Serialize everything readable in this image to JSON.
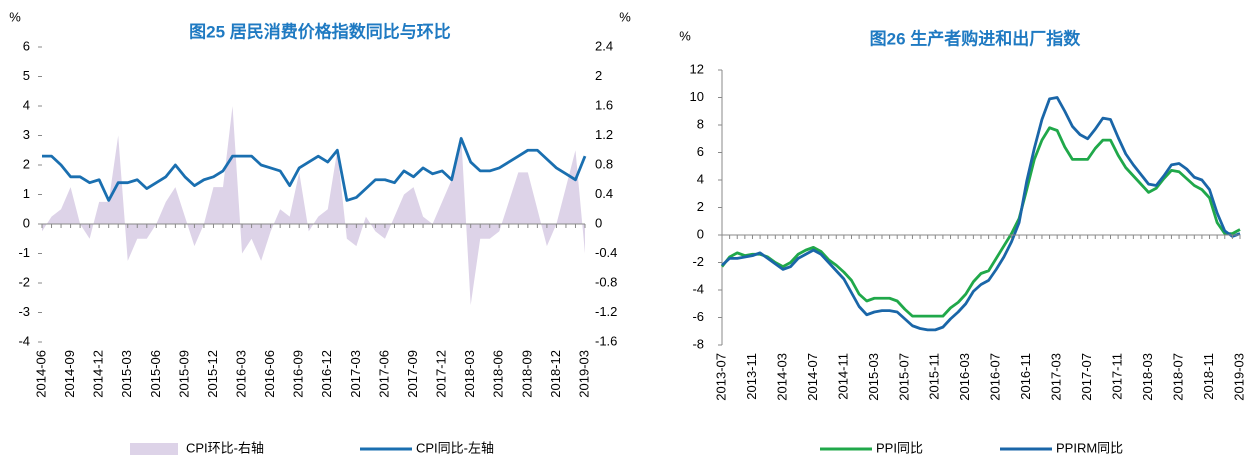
{
  "chart_data": [
    {
      "type": "line",
      "title": "图25 居民消费价格指数同比与环比",
      "y_unit": "%",
      "y2_unit": "%",
      "categories": [
        "2014-06",
        null,
        null,
        "2014-09",
        null,
        null,
        "2014-12",
        null,
        null,
        "2015-03",
        null,
        null,
        "2015-06",
        null,
        null,
        "2015-09",
        null,
        null,
        "2015-12",
        null,
        null,
        "2016-03",
        null,
        null,
        "2016-06",
        null,
        null,
        "2016-09",
        null,
        null,
        "2016-12",
        null,
        null,
        "2017-03",
        null,
        null,
        "2017-06",
        null,
        null,
        "2017-09",
        null,
        null,
        "2017-12",
        null,
        null,
        "2018-03",
        null,
        null,
        "2018-06",
        null,
        null,
        "2018-09",
        null,
        null,
        "2018-12",
        null,
        null,
        "2019-03"
      ],
      "series": [
        {
          "name": "CPI环比-右轴",
          "type": "area",
          "axis": "y2",
          "color": "#ddd3e8",
          "values": [
            -0.1,
            0.1,
            0.2,
            0.5,
            0.0,
            -0.2,
            0.3,
            0.3,
            1.2,
            -0.5,
            -0.2,
            -0.2,
            0.0,
            0.3,
            0.5,
            0.1,
            -0.3,
            0.0,
            0.5,
            0.5,
            1.6,
            -0.4,
            -0.2,
            -0.5,
            -0.1,
            0.2,
            0.1,
            0.7,
            -0.1,
            0.1,
            0.2,
            1.0,
            -0.2,
            -0.3,
            0.1,
            -0.1,
            -0.2,
            0.1,
            0.4,
            0.5,
            0.1,
            0.0,
            0.3,
            0.6,
            1.2,
            -1.1,
            -0.2,
            -0.2,
            -0.1,
            0.3,
            0.7,
            0.7,
            0.2,
            -0.3,
            0.0,
            0.5,
            1.0,
            -0.4
          ]
        },
        {
          "name": "CPI同比-左轴",
          "type": "line",
          "color": "#1a6fb0",
          "values": [
            2.3,
            2.3,
            2.0,
            1.6,
            1.6,
            1.4,
            1.5,
            0.8,
            1.4,
            1.4,
            1.5,
            1.2,
            1.4,
            1.6,
            2.0,
            1.6,
            1.3,
            1.5,
            1.6,
            1.8,
            2.3,
            2.3,
            2.3,
            2.0,
            1.9,
            1.8,
            1.3,
            1.9,
            2.1,
            2.3,
            2.1,
            2.5,
            0.8,
            0.9,
            1.2,
            1.5,
            1.5,
            1.4,
            1.8,
            1.6,
            1.9,
            1.7,
            1.8,
            1.5,
            2.9,
            2.1,
            1.8,
            1.8,
            1.9,
            2.1,
            2.3,
            2.5,
            2.5,
            2.2,
            1.9,
            1.7,
            1.5,
            2.3
          ]
        }
      ],
      "ylim": [
        -4,
        6
      ],
      "yticks": [
        -4,
        -3,
        -2,
        -1,
        0,
        1,
        2,
        3,
        4,
        5,
        6
      ],
      "y2lim": [
        -1.6,
        2.4
      ],
      "y2ticks": [
        -1.6,
        -1.2,
        -0.8,
        -0.4,
        0,
        0.4,
        0.8,
        1.2,
        1.6,
        2.0,
        2.4
      ],
      "legend": "bottom"
    },
    {
      "type": "line",
      "title": "图26 生产者购进和出厂指数",
      "y_unit": "%",
      "categories": [
        "2013-07",
        null,
        null,
        null,
        "2013-11",
        null,
        null,
        null,
        "2014-03",
        null,
        null,
        null,
        "2014-07",
        null,
        null,
        null,
        "2014-11",
        null,
        null,
        null,
        "2015-03",
        null,
        null,
        null,
        "2015-07",
        null,
        null,
        null,
        "2015-11",
        null,
        null,
        null,
        "2016-03",
        null,
        null,
        null,
        "2016-07",
        null,
        null,
        null,
        "2016-11",
        null,
        null,
        null,
        "2017-03",
        null,
        null,
        null,
        "2017-07",
        null,
        null,
        null,
        "2017-11",
        null,
        null,
        null,
        "2018-03",
        null,
        null,
        null,
        "2018-07",
        null,
        null,
        null,
        "2018-11",
        null,
        null,
        null,
        "2019-03"
      ],
      "series": [
        {
          "name": "PPI同比",
          "type": "line",
          "color": "#20a84a",
          "values": [
            -2.3,
            -1.6,
            -1.3,
            -1.5,
            -1.4,
            -1.4,
            -1.6,
            -2.0,
            -2.3,
            -2.0,
            -1.4,
            -1.1,
            -0.9,
            -1.2,
            -1.8,
            -2.2,
            -2.7,
            -3.3,
            -4.3,
            -4.8,
            -4.6,
            -4.6,
            -4.6,
            -4.8,
            -5.4,
            -5.9,
            -5.9,
            -5.9,
            -5.9,
            -5.9,
            -5.3,
            -4.9,
            -4.3,
            -3.4,
            -2.8,
            -2.6,
            -1.7,
            -0.8,
            0.1,
            1.2,
            3.3,
            5.5,
            6.9,
            7.8,
            7.6,
            6.4,
            5.5,
            5.5,
            5.5,
            6.3,
            6.9,
            6.9,
            5.8,
            4.9,
            4.3,
            3.7,
            3.1,
            3.4,
            4.1,
            4.7,
            4.6,
            4.1,
            3.6,
            3.3,
            2.7,
            0.9,
            0.1,
            0.1,
            0.4
          ]
        },
        {
          "name": "PPIRM同比",
          "type": "line",
          "color": "#1a66a8",
          "values": [
            -2.2,
            -1.7,
            -1.7,
            -1.6,
            -1.5,
            -1.3,
            -1.7,
            -2.1,
            -2.5,
            -2.3,
            -1.7,
            -1.4,
            -1.1,
            -1.4,
            -2.0,
            -2.6,
            -3.2,
            -4.2,
            -5.2,
            -5.8,
            -5.6,
            -5.5,
            -5.5,
            -5.6,
            -6.1,
            -6.6,
            -6.8,
            -6.9,
            -6.9,
            -6.7,
            -6.1,
            -5.6,
            -5.0,
            -4.1,
            -3.6,
            -3.3,
            -2.5,
            -1.6,
            -0.5,
            0.9,
            3.9,
            6.3,
            8.4,
            9.9,
            10.0,
            9.0,
            7.9,
            7.3,
            7.0,
            7.7,
            8.5,
            8.4,
            7.1,
            5.9,
            5.1,
            4.4,
            3.7,
            3.6,
            4.3,
            5.1,
            5.2,
            4.8,
            4.2,
            4.0,
            3.3,
            1.6,
            0.3,
            -0.1,
            0.1
          ]
        }
      ],
      "ylim": [
        -8,
        12
      ],
      "yticks": [
        -8,
        -6,
        -4,
        -2,
        0,
        2,
        4,
        6,
        8,
        10,
        12
      ],
      "legend": "bottom"
    }
  ]
}
